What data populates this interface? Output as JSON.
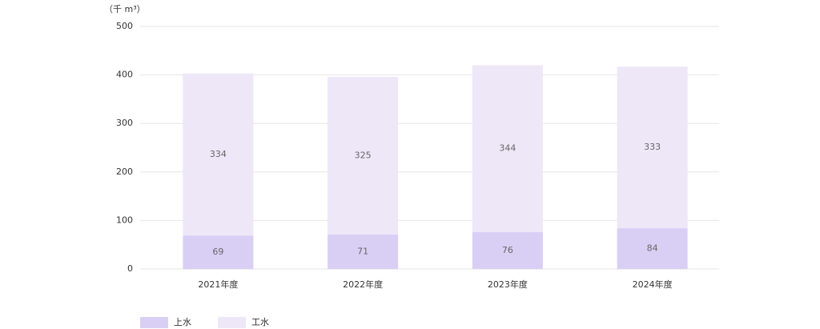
{
  "chart_data": {
    "type": "stacked_bar",
    "y_label": "（千 m³）",
    "categories": [
      "2021年度",
      "2022年度",
      "2023年度",
      "2024年度"
    ],
    "series": [
      {
        "name": "上水",
        "color": "#d9cff5",
        "values": [
          69,
          71,
          76,
          84
        ]
      },
      {
        "name": "工水",
        "color": "#ede7f7",
        "values": [
          334,
          325,
          344,
          333
        ]
      }
    ],
    "ylim": [
      0,
      500
    ],
    "yticks": [
      0,
      100,
      200,
      300,
      400,
      500
    ],
    "grid": true,
    "legend": "bottom-left"
  }
}
